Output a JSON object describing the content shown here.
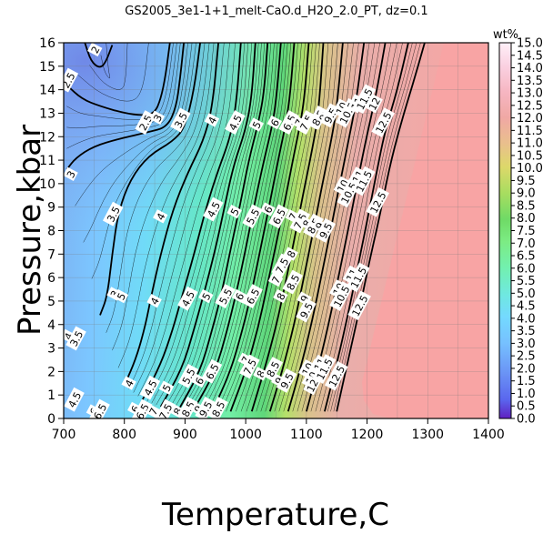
{
  "chart_data": {
    "type": "heatmap",
    "title": "GS2005_3e1-1+1_melt-CaO.d_H2O_2.0_PT, dz=0.1",
    "xlabel": "Temperature,C",
    "ylabel": "Pressure,kbar",
    "xlim": [
      700,
      1400
    ],
    "ylim": [
      0,
      16
    ],
    "x_ticks": [
      "700",
      "800",
      "900",
      "1000",
      "1100",
      "1200",
      "1300",
      "1400"
    ],
    "y_ticks": [
      "0",
      "1",
      "2",
      "3",
      "4",
      "5",
      "6",
      "7",
      "8",
      "9",
      "10",
      "11",
      "12",
      "13",
      "14",
      "15",
      "16"
    ],
    "colorbar": {
      "label": "wt%",
      "range": [
        0.0,
        15.0
      ],
      "ticks": [
        "0.0",
        "0.5",
        "1.0",
        "1.5",
        "2.0",
        "2.5",
        "3.0",
        "3.5",
        "4.0",
        "4.5",
        "5.0",
        "5.5",
        "6.0",
        "6.5",
        "7.0",
        "7.5",
        "8.0",
        "8.5",
        "9.0",
        "9.5",
        "10.0",
        "10.5",
        "11.0",
        "11.5",
        "12.0",
        "12.5",
        "13.0",
        "13.5",
        "14.0",
        "14.5",
        "15.0"
      ]
    },
    "grid": true,
    "contours": [
      {
        "level": "2",
        "points": [
          [
            780,
            15.9
          ],
          [
            770,
            15.2
          ],
          [
            760,
            14.9
          ],
          [
            745,
            15.2
          ],
          [
            735,
            16
          ]
        ]
      },
      {
        "level": "2.5",
        "points": [
          [
            705,
            14.2
          ],
          [
            730,
            13.6
          ],
          [
            760,
            13.3
          ],
          [
            800,
            13.0
          ],
          [
            830,
            12.9
          ],
          [
            850,
            13.0
          ],
          [
            860,
            13.6
          ],
          [
            868,
            14.6
          ],
          [
            875,
            16
          ]
        ]
      },
      {
        "level": "3",
        "points": [
          [
            705,
            10.6
          ],
          [
            720,
            11.1
          ],
          [
            750,
            11.6
          ],
          [
            790,
            11.9
          ],
          [
            840,
            12.2
          ],
          [
            870,
            12.4
          ],
          [
            885,
            13.2
          ],
          [
            892,
            14.5
          ],
          [
            898,
            16
          ]
        ]
      },
      {
        "level": "3.5",
        "points": [
          [
            760,
            4.4
          ],
          [
            772,
            5.2
          ],
          [
            780,
            7.0
          ],
          [
            790,
            8.8
          ],
          [
            810,
            10.2
          ],
          [
            840,
            11.2
          ],
          [
            880,
            11.8
          ],
          [
            900,
            12.4
          ],
          [
            915,
            14.0
          ],
          [
            925,
            16
          ]
        ]
      },
      {
        "level": "4",
        "points": [
          [
            800,
            1.4
          ],
          [
            820,
            2.6
          ],
          [
            835,
            4.0
          ],
          [
            845,
            5.3
          ],
          [
            860,
            7.0
          ],
          [
            880,
            8.9
          ],
          [
            905,
            10.5
          ],
          [
            930,
            11.8
          ],
          [
            945,
            13.2
          ],
          [
            955,
            16
          ]
        ]
      },
      {
        "level": "4.5",
        "points": [
          [
            830,
            0.8
          ],
          [
            860,
            2.3
          ],
          [
            880,
            3.8
          ],
          [
            895,
            5.2
          ],
          [
            915,
            7.0
          ],
          [
            935,
            9.0
          ],
          [
            955,
            10.6
          ],
          [
            975,
            12.0
          ],
          [
            985,
            13.5
          ],
          [
            992,
            16
          ]
        ]
      },
      {
        "level": "5",
        "points": [
          [
            860,
            0.5
          ],
          [
            895,
            2.1
          ],
          [
            915,
            3.8
          ],
          [
            930,
            5.2
          ],
          [
            950,
            7.2
          ],
          [
            965,
            9.0
          ],
          [
            980,
            10.8
          ],
          [
            1000,
            12.3
          ],
          [
            1010,
            13.7
          ],
          [
            1016,
            16
          ]
        ]
      },
      {
        "level": "5.5",
        "points": [
          [
            890,
            0.4
          ],
          [
            925,
            2.0
          ],
          [
            945,
            3.8
          ],
          [
            960,
            5.3
          ],
          [
            975,
            7.2
          ],
          [
            990,
            9.0
          ],
          [
            1005,
            11.0
          ],
          [
            1020,
            12.5
          ],
          [
            1030,
            13.8
          ],
          [
            1036,
            16
          ]
        ]
      },
      {
        "level": "6",
        "points": [
          [
            915,
            0.4
          ],
          [
            950,
            2.0
          ],
          [
            970,
            3.8
          ],
          [
            985,
            5.4
          ],
          [
            1000,
            7.2
          ],
          [
            1015,
            9.2
          ],
          [
            1030,
            11.0
          ],
          [
            1045,
            12.6
          ],
          [
            1052,
            14.0
          ],
          [
            1058,
            16
          ]
        ]
      },
      {
        "level": "6.5",
        "points": [
          [
            945,
            0.3
          ],
          [
            975,
            2.0
          ],
          [
            995,
            3.8
          ],
          [
            1010,
            5.4
          ],
          [
            1025,
            7.3
          ],
          [
            1040,
            9.2
          ],
          [
            1055,
            11.2
          ],
          [
            1068,
            12.8
          ],
          [
            1074,
            14.0
          ],
          [
            1080,
            16
          ]
        ]
      },
      {
        "level": "7",
        "points": [
          [
            975,
            0.3
          ],
          [
            1000,
            2.0
          ],
          [
            1020,
            3.8
          ],
          [
            1035,
            5.6
          ],
          [
            1050,
            7.4
          ],
          [
            1065,
            9.3
          ],
          [
            1080,
            11.3
          ],
          [
            1092,
            12.8
          ],
          [
            1098,
            14.0
          ],
          [
            1104,
            16
          ]
        ]
      },
      {
        "level": "8",
        "points": [
          [
            1010,
            0.3
          ],
          [
            1030,
            2.0
          ],
          [
            1050,
            3.9
          ],
          [
            1065,
            5.7
          ],
          [
            1080,
            7.6
          ],
          [
            1095,
            9.6
          ],
          [
            1110,
            11.5
          ],
          [
            1120,
            13.0
          ],
          [
            1128,
            16
          ]
        ]
      },
      {
        "level": "9",
        "points": [
          [
            1040,
            0.3
          ],
          [
            1060,
            2.0
          ],
          [
            1080,
            4.0
          ],
          [
            1095,
            5.9
          ],
          [
            1110,
            7.8
          ],
          [
            1125,
            9.8
          ],
          [
            1140,
            11.7
          ],
          [
            1150,
            13.2
          ],
          [
            1160,
            16
          ]
        ]
      },
      {
        "level": "10",
        "points": [
          [
            1070,
            0.3
          ],
          [
            1090,
            2.1
          ],
          [
            1110,
            4.2
          ],
          [
            1125,
            6.1
          ],
          [
            1140,
            8.0
          ],
          [
            1155,
            10.0
          ],
          [
            1170,
            11.9
          ],
          [
            1182,
            13.5
          ],
          [
            1195,
            16
          ]
        ]
      },
      {
        "level": "11",
        "points": [
          [
            1100,
            0.3
          ],
          [
            1120,
            2.2
          ],
          [
            1140,
            4.4
          ],
          [
            1155,
            6.3
          ],
          [
            1170,
            8.2
          ],
          [
            1185,
            10.2
          ],
          [
            1200,
            12.1
          ],
          [
            1215,
            13.8
          ],
          [
            1230,
            16
          ]
        ]
      },
      {
        "level": "12",
        "points": [
          [
            1130,
            0.3
          ],
          [
            1150,
            2.3
          ],
          [
            1170,
            4.6
          ],
          [
            1185,
            6.5
          ],
          [
            1200,
            8.4
          ],
          [
            1215,
            10.4
          ],
          [
            1230,
            12.3
          ],
          [
            1250,
            14.0
          ],
          [
            1268,
            16
          ]
        ]
      },
      {
        "level": "12.5",
        "points": [
          [
            1150,
            0.3
          ],
          [
            1168,
            2.4
          ],
          [
            1188,
            4.7
          ],
          [
            1203,
            6.6
          ],
          [
            1220,
            8.5
          ],
          [
            1236,
            10.6
          ],
          [
            1255,
            12.5
          ],
          [
            1275,
            14.2
          ],
          [
            1295,
            16
          ]
        ]
      }
    ],
    "contour_labels": [
      {
        "text": "2",
        "x": 752,
        "y": 15.7
      },
      {
        "text": "2.5",
        "x": 708,
        "y": 14.4
      },
      {
        "text": "2.5",
        "x": 835,
        "y": 12.6
      },
      {
        "text": "3",
        "x": 855,
        "y": 12.8
      },
      {
        "text": "3.5",
        "x": 893,
        "y": 12.7
      },
      {
        "text": "4",
        "x": 945,
        "y": 12.7
      },
      {
        "text": "4.5",
        "x": 983,
        "y": 12.6
      },
      {
        "text": "5",
        "x": 1018,
        "y": 12.5
      },
      {
        "text": "6",
        "x": 1048,
        "y": 12.6
      },
      {
        "text": "6.5",
        "x": 1072,
        "y": 12.6
      },
      {
        "text": "7",
        "x": 1088,
        "y": 12.6
      },
      {
        "text": "7.5",
        "x": 1100,
        "y": 12.6
      },
      {
        "text": "8",
        "x": 1112,
        "y": 12.6
      },
      {
        "text": "8.5",
        "x": 1120,
        "y": 12.8
      },
      {
        "text": "9",
        "x": 1128,
        "y": 12.8
      },
      {
        "text": "9.5",
        "x": 1140,
        "y": 12.9
      },
      {
        "text": "10",
        "x": 1158,
        "y": 13.2
      },
      {
        "text": "10.5",
        "x": 1168,
        "y": 13.0
      },
      {
        "text": "11",
        "x": 1183,
        "y": 13.4
      },
      {
        "text": "11.5",
        "x": 1196,
        "y": 13.6
      },
      {
        "text": "12",
        "x": 1212,
        "y": 13.4
      },
      {
        "text": "12.5",
        "x": 1227,
        "y": 12.6
      },
      {
        "text": "3",
        "x": 712,
        "y": 10.4
      },
      {
        "text": "3.5",
        "x": 782,
        "y": 8.7
      },
      {
        "text": "4",
        "x": 860,
        "y": 8.6
      },
      {
        "text": "4.5",
        "x": 947,
        "y": 8.9
      },
      {
        "text": "5",
        "x": 982,
        "y": 8.8
      },
      {
        "text": "5.5",
        "x": 1012,
        "y": 8.6
      },
      {
        "text": "6",
        "x": 1037,
        "y": 8.9
      },
      {
        "text": "6.5",
        "x": 1055,
        "y": 8.6
      },
      {
        "text": "7",
        "x": 1078,
        "y": 8.6
      },
      {
        "text": "7.5",
        "x": 1090,
        "y": 8.4
      },
      {
        "text": "8",
        "x": 1101,
        "y": 8.3
      },
      {
        "text": "8.5",
        "x": 1112,
        "y": 8.2
      },
      {
        "text": "9",
        "x": 1122,
        "y": 8.2
      },
      {
        "text": "9.5",
        "x": 1132,
        "y": 8.0
      },
      {
        "text": "10",
        "x": 1160,
        "y": 9.9
      },
      {
        "text": "10.5",
        "x": 1170,
        "y": 9.6
      },
      {
        "text": "11",
        "x": 1185,
        "y": 10.3
      },
      {
        "text": "11.5",
        "x": 1195,
        "y": 10.1
      },
      {
        "text": "12.5",
        "x": 1218,
        "y": 9.2
      },
      {
        "text": "3",
        "x": 784,
        "y": 5.3
      },
      {
        "text": "5",
        "x": 795,
        "y": 5.2
      },
      {
        "text": "4",
        "x": 850,
        "y": 5.0
      },
      {
        "text": "4.5",
        "x": 905,
        "y": 5.1
      },
      {
        "text": "5",
        "x": 935,
        "y": 5.2
      },
      {
        "text": "5.5",
        "x": 967,
        "y": 5.2
      },
      {
        "text": "6",
        "x": 990,
        "y": 5.2
      },
      {
        "text": "6.5",
        "x": 1012,
        "y": 5.2
      },
      {
        "text": "7",
        "x": 1050,
        "y": 5.9
      },
      {
        "text": "7.5",
        "x": 1060,
        "y": 6.5
      },
      {
        "text": "8",
        "x": 1075,
        "y": 7.0
      },
      {
        "text": "8.5",
        "x": 1078,
        "y": 5.8
      },
      {
        "text": "8",
        "x": 1058,
        "y": 5.2
      },
      {
        "text": "9",
        "x": 1097,
        "y": 5.1
      },
      {
        "text": "9.5",
        "x": 1100,
        "y": 4.6
      },
      {
        "text": "10",
        "x": 1153,
        "y": 5.5
      },
      {
        "text": "10.5",
        "x": 1158,
        "y": 5.2
      },
      {
        "text": "11",
        "x": 1175,
        "y": 6.1
      },
      {
        "text": "11.5",
        "x": 1186,
        "y": 6.0
      },
      {
        "text": "12.5",
        "x": 1188,
        "y": 4.8
      },
      {
        "text": "4",
        "x": 708,
        "y": 3.5
      },
      {
        "text": "3.5",
        "x": 721,
        "y": 3.4
      },
      {
        "text": "4",
        "x": 808,
        "y": 1.5
      },
      {
        "text": "4.5",
        "x": 843,
        "y": 1.3
      },
      {
        "text": "5",
        "x": 870,
        "y": 1.3
      },
      {
        "text": "5.5",
        "x": 906,
        "y": 1.8
      },
      {
        "text": "6",
        "x": 924,
        "y": 1.6
      },
      {
        "text": "6.5",
        "x": 945,
        "y": 2.0
      },
      {
        "text": "7",
        "x": 1000,
        "y": 2.5
      },
      {
        "text": "7.5",
        "x": 1007,
        "y": 2.2
      },
      {
        "text": "8",
        "x": 1025,
        "y": 1.9
      },
      {
        "text": "8.5",
        "x": 1045,
        "y": 2.1
      },
      {
        "text": "9",
        "x": 1055,
        "y": 1.6
      },
      {
        "text": "9.5",
        "x": 1068,
        "y": 1.6
      },
      {
        "text": "10",
        "x": 1102,
        "y": 2.1
      },
      {
        "text": "10.5",
        "x": 1112,
        "y": 1.9
      },
      {
        "text": "11",
        "x": 1122,
        "y": 2.3
      },
      {
        "text": "11.5",
        "x": 1130,
        "y": 2.1
      },
      {
        "text": "12",
        "x": 1110,
        "y": 1.4
      },
      {
        "text": "12.5",
        "x": 1150,
        "y": 1.8
      },
      {
        "text": "4.5",
        "x": 718,
        "y": 0.8
      },
      {
        "text": "6",
        "x": 750,
        "y": 0.3
      },
      {
        "text": "6.5",
        "x": 760,
        "y": 0.3
      },
      {
        "text": "6",
        "x": 818,
        "y": 0.4
      },
      {
        "text": "6.5",
        "x": 830,
        "y": 0.3
      },
      {
        "text": "7",
        "x": 848,
        "y": 0.3
      },
      {
        "text": "7.5",
        "x": 868,
        "y": 0.3
      },
      {
        "text": "8",
        "x": 888,
        "y": 0.3
      },
      {
        "text": "8.5",
        "x": 905,
        "y": 0.4
      },
      {
        "text": "9",
        "x": 922,
        "y": 0.4
      },
      {
        "text": "9.5",
        "x": 934,
        "y": 0.4
      },
      {
        "text": "8.5",
        "x": 955,
        "y": 0.4
      }
    ]
  }
}
